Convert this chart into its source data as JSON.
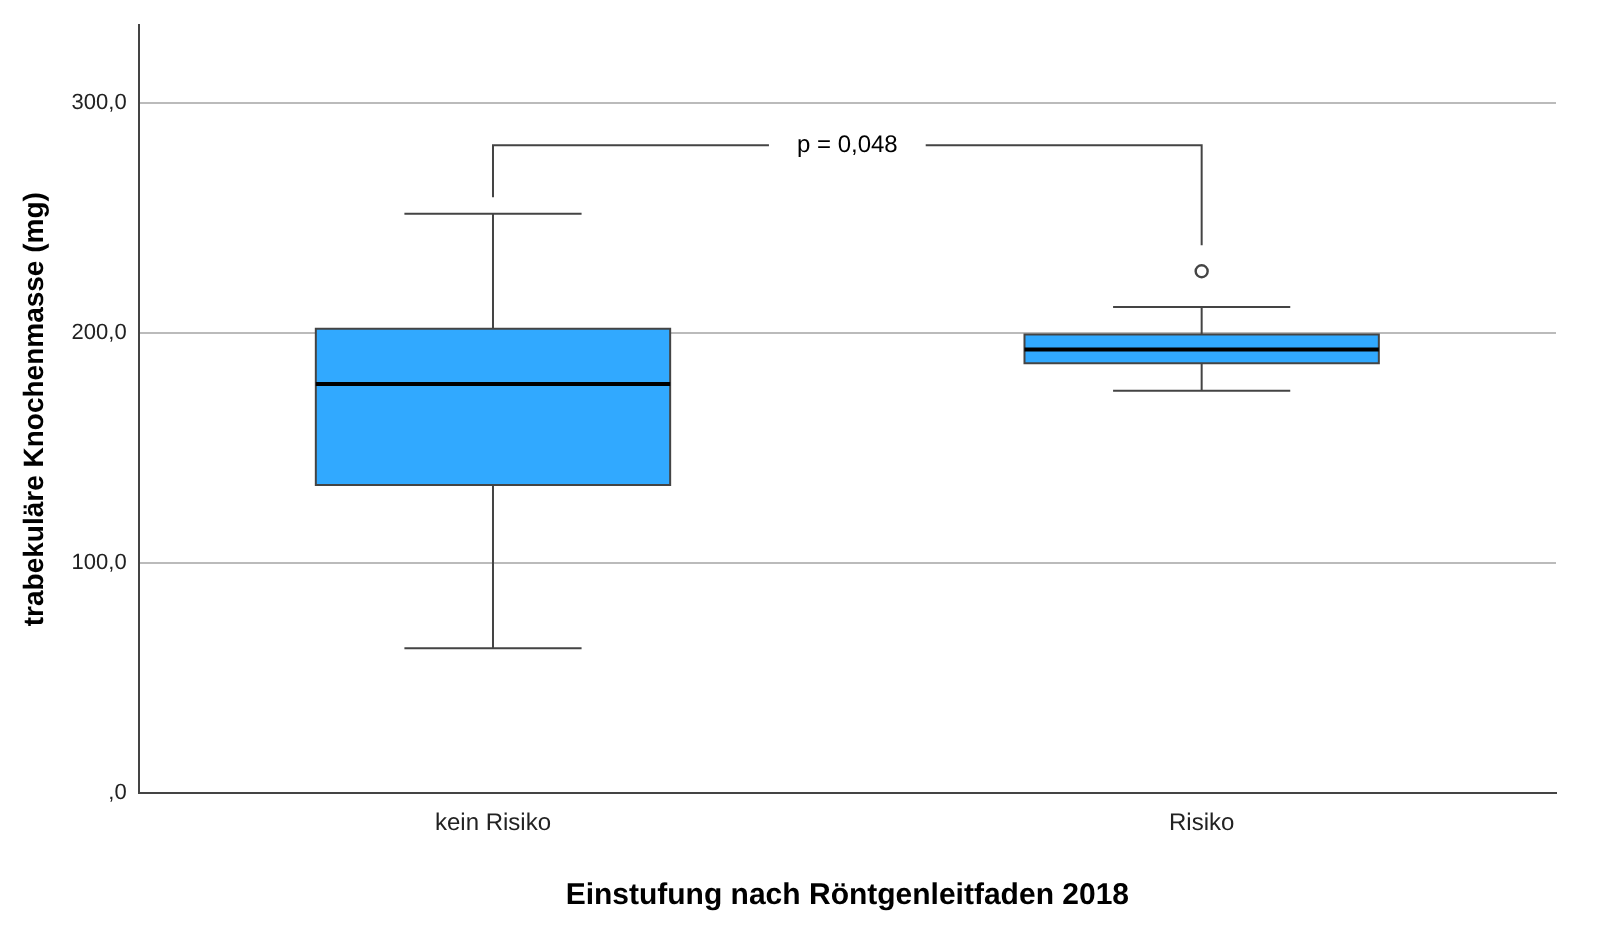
{
  "chart_data": {
    "type": "box",
    "categories": [
      "kein Risiko",
      "Risiko"
    ],
    "series": [
      {
        "color": "#31a9ff",
        "boxes": [
          {
            "low": 63,
            "q1": 134,
            "median": 178,
            "q3": 202,
            "high": 252
          },
          {
            "low": 175,
            "q1": 187,
            "median": 193,
            "q3": 199.5,
            "high": 211.5,
            "outliers": [
              227
            ]
          }
        ]
      }
    ],
    "xlabel": "Einstufung nach Röntgenleitfaden 2018",
    "ylabel": "trabekuläre Knochenmasse (mg)",
    "ylim": [
      0,
      334
    ],
    "yticks": [
      {
        "value": 0,
        "label": ",0"
      },
      {
        "value": 100,
        "label": "100,0"
      },
      {
        "value": 200,
        "label": "200,0"
      },
      {
        "value": 300,
        "label": "300,0"
      }
    ],
    "grid": "y",
    "annotations": [
      "p = 0,048"
    ]
  }
}
